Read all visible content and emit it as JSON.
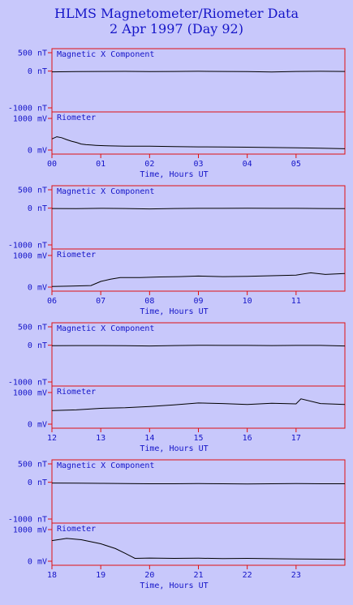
{
  "header": {
    "title": "HLMS Magnetometer/Riometer Data",
    "date_line": "2 Apr 1997 (Day 92)"
  },
  "colors": {
    "background": "#c8c8fb",
    "axis_text": "#1515c8",
    "frame": "#e01010",
    "trace": "#000000"
  },
  "chart_data": [
    {
      "type": "line",
      "panel_label": "Magnetic X Component",
      "y_unit": "nT",
      "ylim": [
        -1000,
        500
      ],
      "yticks": [
        500,
        0,
        -1000
      ],
      "ytick_labels": [
        "500 nT",
        "0 nT",
        "-1000 nT"
      ],
      "xlim": [
        0,
        6
      ],
      "xticks": [
        "00",
        "01",
        "02",
        "03",
        "04",
        "05"
      ],
      "xlabel": "Time, Hours UT",
      "x": [
        0,
        0.5,
        1,
        1.5,
        2,
        2.5,
        3,
        3.5,
        4,
        4.5,
        5,
        5.5,
        6
      ],
      "y": [
        -20,
        -15,
        -10,
        -8,
        -12,
        -10,
        -5,
        -10,
        -15,
        -25,
        -10,
        -5,
        -10
      ]
    },
    {
      "type": "line",
      "panel_label": "Riometer",
      "y_unit": "mV",
      "ylim": [
        0,
        1100
      ],
      "yticks": [
        1000,
        0
      ],
      "ytick_labels": [
        "1000 mV",
        "0 mV"
      ],
      "xlim": [
        0,
        6
      ],
      "xticks": [
        "00",
        "01",
        "02",
        "03",
        "04",
        "05"
      ],
      "xlabel": "Time, Hours UT",
      "x": [
        0,
        0.1,
        0.2,
        0.3,
        0.4,
        0.5,
        0.6,
        0.7,
        0.8,
        0.9,
        1.0,
        1.2,
        1.5,
        2,
        2.5,
        3,
        3.5,
        4,
        4.5,
        5,
        5.5,
        6
      ],
      "y": [
        350,
        420,
        390,
        330,
        280,
        240,
        190,
        170,
        160,
        150,
        140,
        130,
        120,
        120,
        110,
        100,
        95,
        90,
        80,
        70,
        60,
        40
      ]
    },
    {
      "type": "line",
      "panel_label": "Magnetic X Component",
      "y_unit": "nT",
      "ylim": [
        -1000,
        500
      ],
      "yticks": [
        500,
        0,
        -1000
      ],
      "ytick_labels": [
        "500 nT",
        "0 nT",
        "-1000 nT"
      ],
      "xlim": [
        6,
        12
      ],
      "xticks": [
        "06",
        "07",
        "08",
        "09",
        "10",
        "11"
      ],
      "xlabel": "Time, Hours UT",
      "x": [
        6,
        6.5,
        7,
        7.5,
        8,
        8.5,
        9,
        9.5,
        10,
        10.5,
        11,
        11.5,
        12
      ],
      "y": [
        -10,
        -15,
        -5,
        -10,
        -20,
        -10,
        -5,
        -5,
        0,
        -5,
        -5,
        -10,
        -15
      ]
    },
    {
      "type": "line",
      "panel_label": "Riometer",
      "y_unit": "mV",
      "ylim": [
        0,
        1100
      ],
      "yticks": [
        1000,
        0
      ],
      "ytick_labels": [
        "1000 mV",
        "0 mV"
      ],
      "xlim": [
        6,
        12
      ],
      "xticks": [
        "06",
        "07",
        "08",
        "09",
        "10",
        "11"
      ],
      "xlabel": "Time, Hours UT",
      "x": [
        6,
        6.4,
        6.8,
        7.0,
        7.2,
        7.4,
        7.8,
        8.2,
        8.6,
        9.0,
        9.5,
        10,
        10.5,
        11,
        11.3,
        11.6,
        12
      ],
      "y": [
        20,
        30,
        50,
        180,
        250,
        300,
        300,
        320,
        330,
        350,
        330,
        340,
        360,
        380,
        450,
        400,
        430
      ]
    },
    {
      "type": "line",
      "panel_label": "Magnetic X Component",
      "y_unit": "nT",
      "ylim": [
        -1000,
        500
      ],
      "yticks": [
        500,
        0,
        -1000
      ],
      "ytick_labels": [
        "500 nT",
        "0 nT",
        "-1000 nT"
      ],
      "xlim": [
        12,
        18
      ],
      "xticks": [
        "12",
        "13",
        "14",
        "15",
        "16",
        "17"
      ],
      "xlabel": "Time, Hours UT",
      "x": [
        12,
        12.5,
        13,
        13.5,
        14,
        14.5,
        15,
        15.5,
        16,
        16.5,
        17,
        17.5,
        18
      ],
      "y": [
        -15,
        -10,
        -10,
        -15,
        -20,
        -10,
        0,
        -5,
        -5,
        -10,
        -5,
        -5,
        -20
      ]
    },
    {
      "type": "line",
      "panel_label": "Riometer",
      "y_unit": "mV",
      "ylim": [
        0,
        1100
      ],
      "yticks": [
        1000,
        0
      ],
      "ytick_labels": [
        "1000 mV",
        "0 mV"
      ],
      "xlim": [
        12,
        18
      ],
      "xticks": [
        "12",
        "13",
        "14",
        "15",
        "16",
        "17"
      ],
      "xlabel": "Time, Hours UT",
      "x": [
        12,
        12.5,
        13,
        13.5,
        14,
        14.5,
        15,
        15.5,
        16,
        16.5,
        17,
        17.1,
        17.5,
        18
      ],
      "y": [
        430,
        450,
        500,
        520,
        560,
        610,
        670,
        650,
        620,
        660,
        640,
        800,
        650,
        620
      ]
    },
    {
      "type": "line",
      "panel_label": "Magnetic X Component",
      "y_unit": "nT",
      "ylim": [
        -1000,
        500
      ],
      "yticks": [
        500,
        0,
        -1000
      ],
      "ytick_labels": [
        "500 nT",
        "0 nT",
        "-1000 nT"
      ],
      "xlim": [
        18,
        24
      ],
      "xticks": [
        "18",
        "19",
        "20",
        "21",
        "22",
        "23"
      ],
      "xlabel": "Time, Hours UT",
      "x": [
        18,
        18.5,
        19,
        19.5,
        20,
        20.5,
        21,
        21.5,
        22,
        22.5,
        23,
        23.5,
        24
      ],
      "y": [
        -20,
        -25,
        -30,
        -35,
        -40,
        -40,
        -35,
        -40,
        -45,
        -40,
        -35,
        -40,
        -40
      ]
    },
    {
      "type": "line",
      "panel_label": "Riometer",
      "y_unit": "mV",
      "ylim": [
        0,
        1100
      ],
      "yticks": [
        1000,
        0
      ],
      "ytick_labels": [
        "1000 mV",
        "0 mV"
      ],
      "xlim": [
        18,
        24
      ],
      "xticks": [
        "18",
        "19",
        "20",
        "21",
        "22",
        "23"
      ],
      "xlabel": "Time, Hours UT",
      "x": [
        18,
        18.3,
        18.6,
        19,
        19.3,
        19.5,
        19.65,
        19.7,
        20,
        20.5,
        21,
        21.5,
        22,
        22.5,
        23,
        23.5,
        24
      ],
      "y": [
        650,
        720,
        680,
        550,
        400,
        250,
        130,
        90,
        100,
        90,
        95,
        85,
        90,
        80,
        70,
        65,
        60
      ]
    }
  ]
}
